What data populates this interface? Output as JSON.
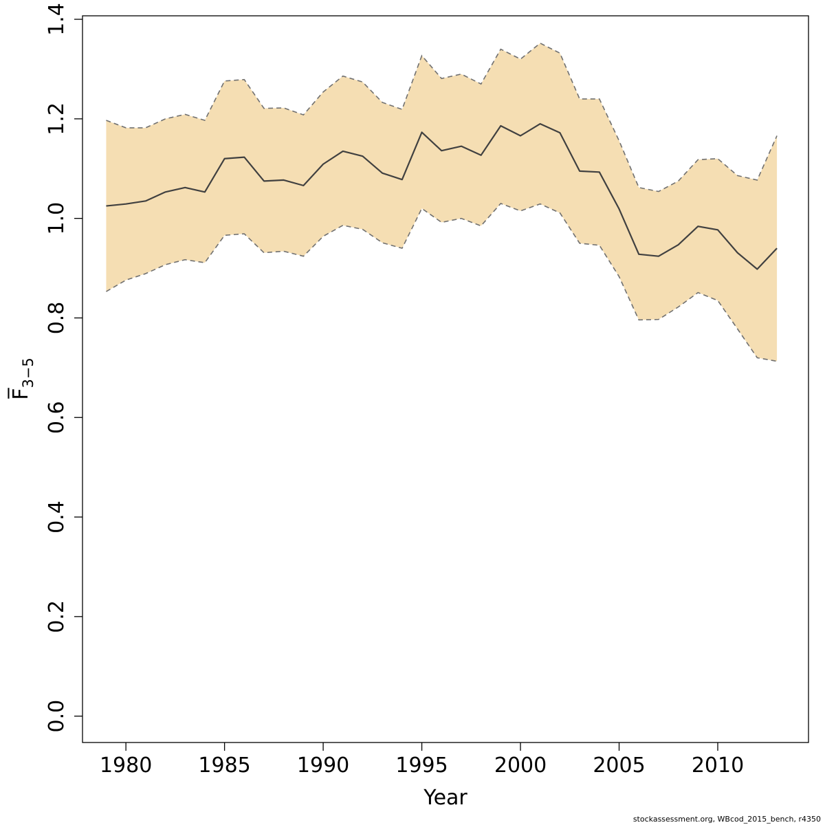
{
  "chart_data": {
    "type": "line",
    "xlabel": "Year",
    "ylabel": "F̅",
    "ylabel_sub": "3−5",
    "xlim": [
      1977.8,
      2014.6
    ],
    "ylim": [
      -0.053,
      1.407
    ],
    "x_ticks": [
      1980,
      1985,
      1990,
      1995,
      2000,
      2005,
      2010
    ],
    "x_tick_labels": [
      "1980",
      "1985",
      "1990",
      "1995",
      "2000",
      "2005",
      "2010"
    ],
    "y_ticks": [
      0.0,
      0.2,
      0.4,
      0.6,
      0.8,
      1.0,
      1.2,
      1.4
    ],
    "y_tick_labels": [
      "0.0",
      "0.2",
      "0.4",
      "0.6",
      "0.8",
      "1.0",
      "1.2",
      "1.4"
    ],
    "grid": false,
    "band_color": "#f5deb3",
    "line_color": "#404040",
    "bound_color": "#707070",
    "x": [
      1979,
      1980,
      1981,
      1982,
      1983,
      1984,
      1985,
      1986,
      1987,
      1988,
      1989,
      1990,
      1991,
      1992,
      1993,
      1994,
      1995,
      1996,
      1997,
      1998,
      1999,
      2000,
      2001,
      2002,
      2003,
      2004,
      2005,
      2006,
      2007,
      2008,
      2009,
      2010,
      2011,
      2012,
      2013
    ],
    "series": [
      {
        "role": "estimate",
        "values": [
          1.025,
          1.029,
          1.035,
          1.053,
          1.062,
          1.053,
          1.12,
          1.123,
          1.075,
          1.077,
          1.066,
          1.109,
          1.135,
          1.125,
          1.091,
          1.078,
          1.173,
          1.136,
          1.145,
          1.127,
          1.186,
          1.166,
          1.19,
          1.172,
          1.095,
          1.093,
          1.019,
          0.928,
          0.924,
          0.947,
          0.984,
          0.977,
          0.931,
          0.898,
          0.94
        ]
      },
      {
        "role": "upper",
        "values": [
          1.197,
          1.182,
          1.182,
          1.2,
          1.209,
          1.197,
          1.276,
          1.279,
          1.221,
          1.222,
          1.208,
          1.254,
          1.286,
          1.274,
          1.233,
          1.219,
          1.327,
          1.281,
          1.29,
          1.27,
          1.34,
          1.32,
          1.352,
          1.332,
          1.24,
          1.24,
          1.156,
          1.062,
          1.054,
          1.075,
          1.118,
          1.12,
          1.086,
          1.077,
          1.166
        ]
      },
      {
        "role": "lower",
        "values": [
          0.853,
          0.876,
          0.889,
          0.907,
          0.917,
          0.911,
          0.966,
          0.969,
          0.931,
          0.934,
          0.924,
          0.964,
          0.986,
          0.978,
          0.951,
          0.94,
          1.02,
          0.992,
          1.0,
          0.985,
          1.03,
          1.015,
          1.029,
          1.011,
          0.95,
          0.946,
          0.883,
          0.796,
          0.797,
          0.822,
          0.851,
          0.835,
          0.778,
          0.72,
          0.713
        ]
      }
    ]
  },
  "footer": {
    "text": "stockassessment.org, WBcod_2015_bench, r4350"
  }
}
